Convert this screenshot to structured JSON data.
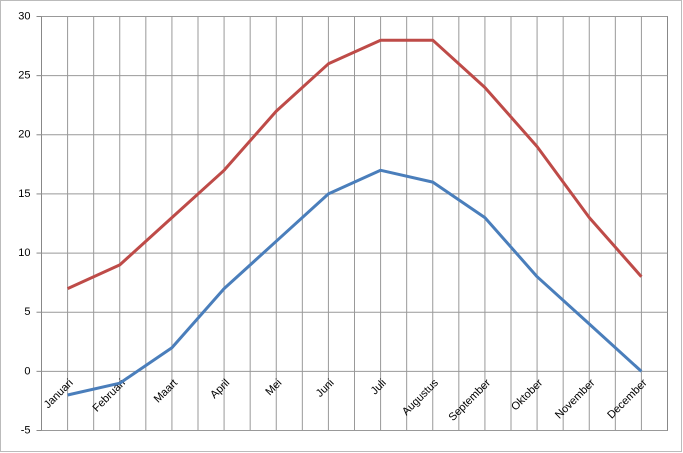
{
  "chart_data": {
    "type": "line",
    "categories": [
      "Januari",
      "Februari",
      "Maart",
      "April",
      "Mei",
      "Juni",
      "Juli",
      "Augustus",
      "September",
      "Oktober",
      "November",
      "December"
    ],
    "series": [
      {
        "color": "#be4b48",
        "values": [
          7,
          9,
          13,
          17,
          22,
          26,
          28,
          28,
          24,
          19,
          13,
          8
        ]
      },
      {
        "color": "#4a7ebb",
        "values": [
          -2,
          -1,
          2,
          7,
          11,
          15,
          17,
          16,
          13,
          8,
          4,
          0
        ]
      }
    ],
    "ylim": [
      -5,
      30
    ],
    "yticks": [
      -5,
      0,
      5,
      10,
      15,
      20,
      25,
      30
    ],
    "grid": true
  }
}
